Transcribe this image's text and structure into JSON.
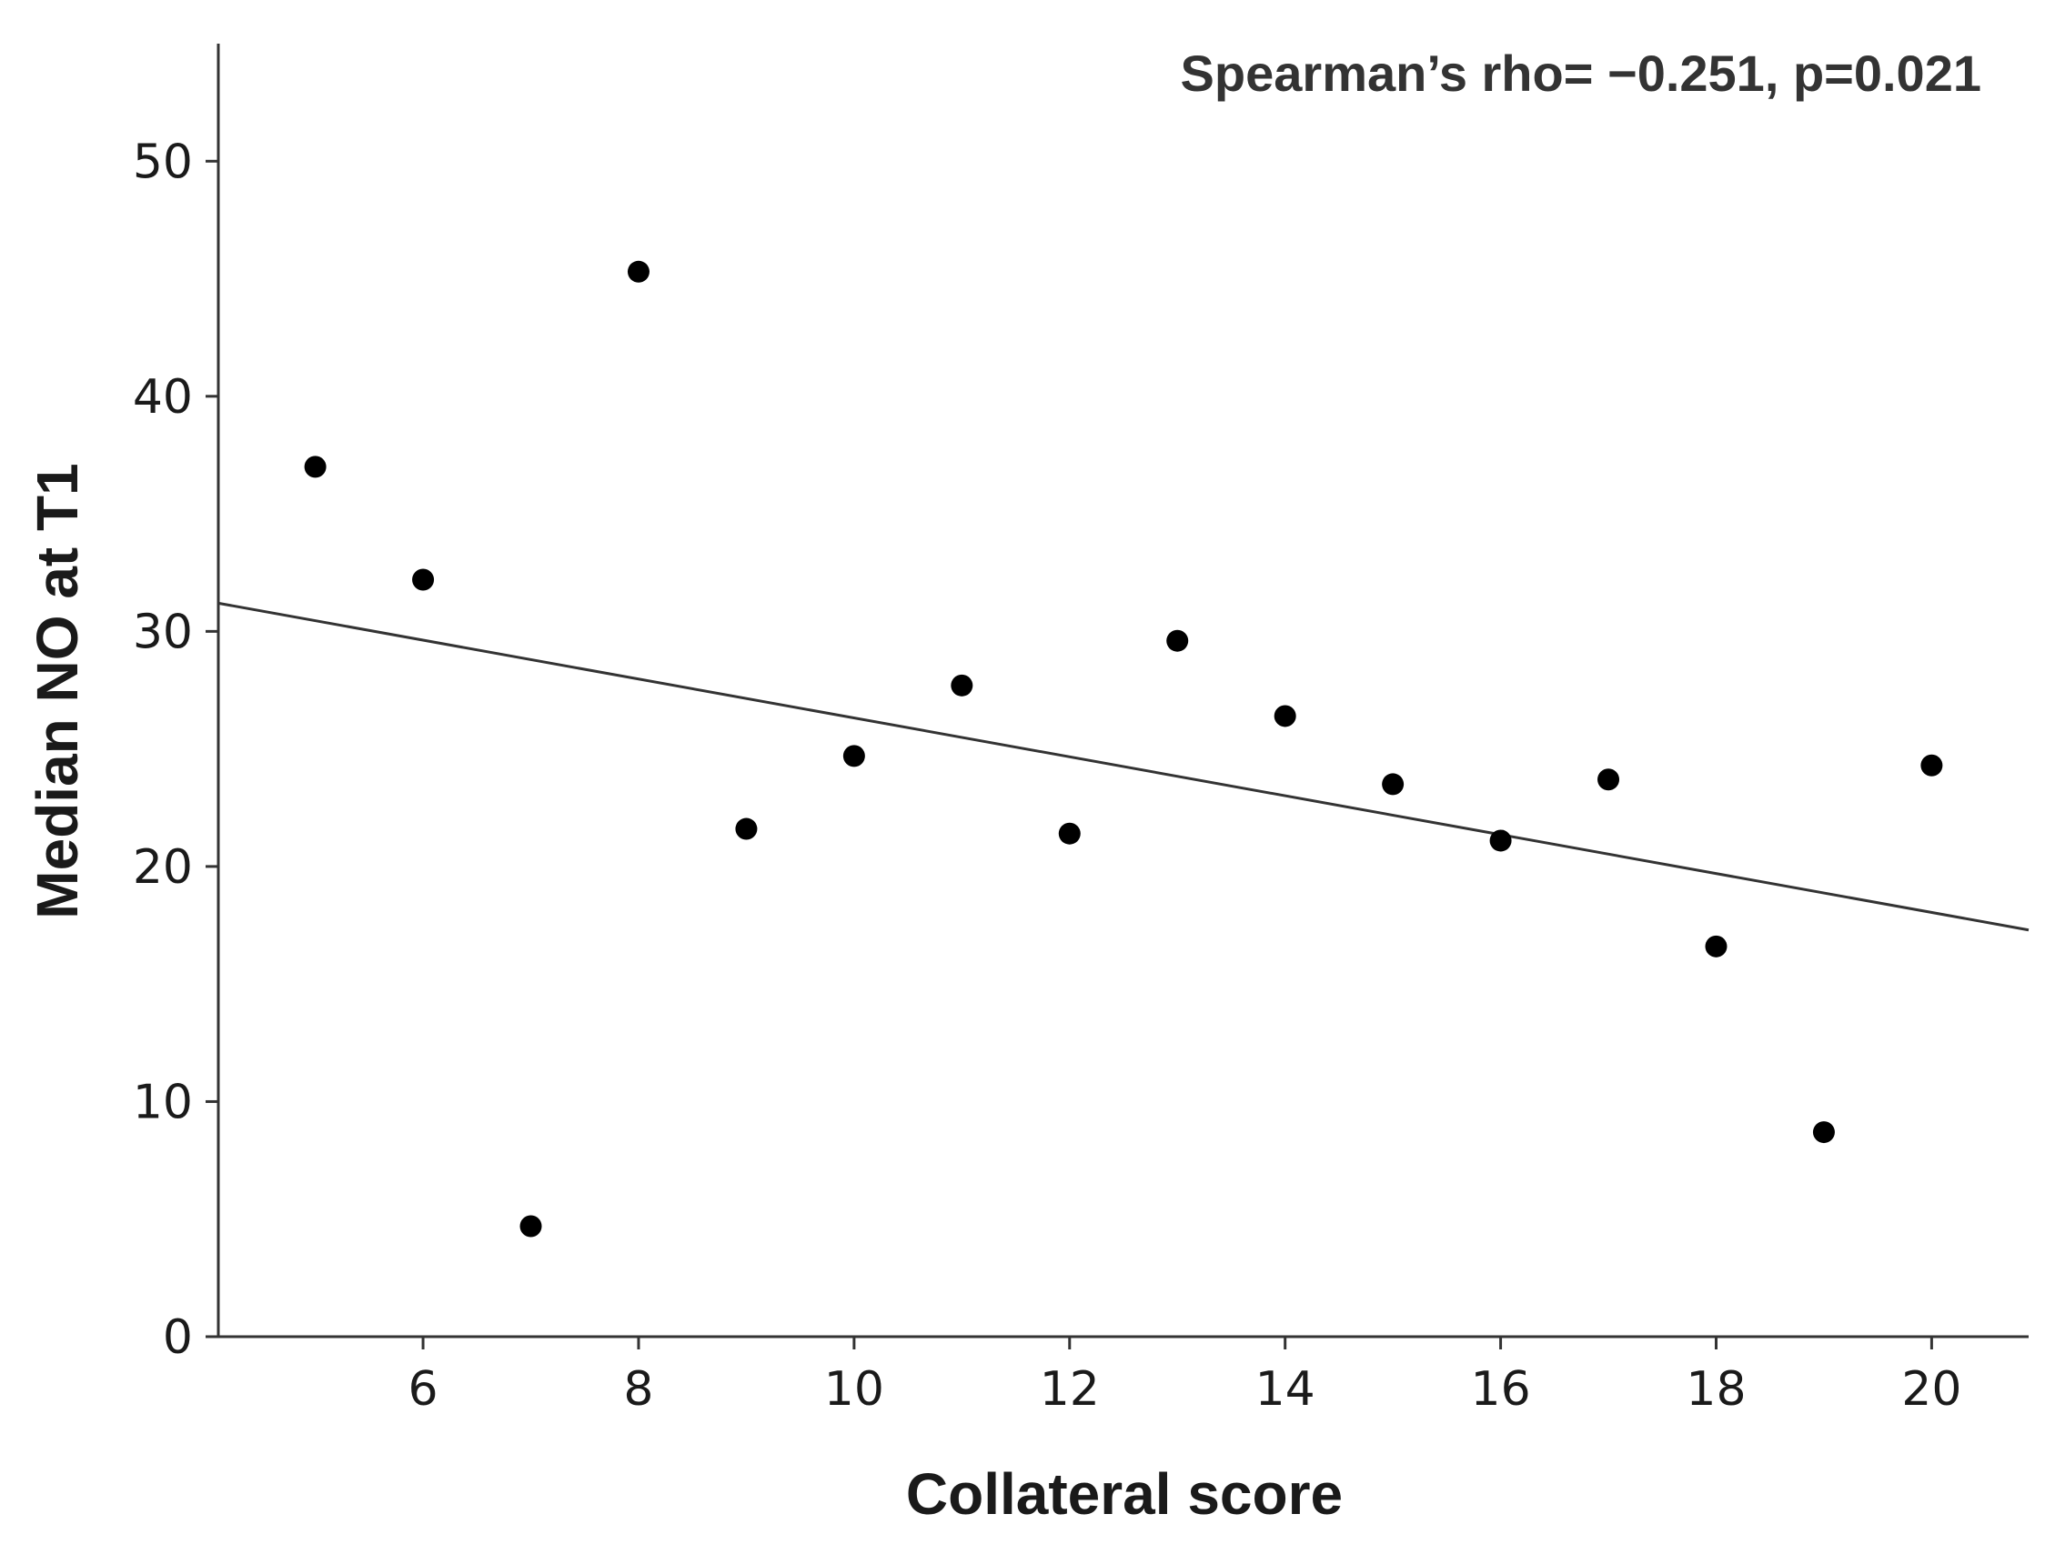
{
  "chart_data": {
    "type": "scatter",
    "title": "",
    "xlabel": "Collateral score",
    "ylabel": "Median NO at T1",
    "annotation": "Spearman’s rho= −0.251, p=0.021",
    "xlim": [
      4.1,
      20.9
    ],
    "ylim": [
      0,
      55
    ],
    "xticks": [
      6,
      8,
      10,
      12,
      14,
      16,
      18,
      20
    ],
    "yticks": [
      0,
      10,
      20,
      30,
      40,
      50
    ],
    "grid": false,
    "points": [
      {
        "x": 5,
        "y": 37.0
      },
      {
        "x": 6,
        "y": 32.2
      },
      {
        "x": 7,
        "y": 4.7
      },
      {
        "x": 8,
        "y": 45.3
      },
      {
        "x": 9,
        "y": 21.6
      },
      {
        "x": 10,
        "y": 24.7
      },
      {
        "x": 11,
        "y": 27.7
      },
      {
        "x": 12,
        "y": 21.4
      },
      {
        "x": 13,
        "y": 29.6
      },
      {
        "x": 14,
        "y": 26.4
      },
      {
        "x": 15,
        "y": 23.5
      },
      {
        "x": 16,
        "y": 21.1
      },
      {
        "x": 17,
        "y": 23.7
      },
      {
        "x": 18,
        "y": 16.6
      },
      {
        "x": 19,
        "y": 8.7
      },
      {
        "x": 20,
        "y": 24.3
      }
    ],
    "fit_line": {
      "x": [
        4.1,
        20.9
      ],
      "y": [
        31.2,
        17.3
      ]
    },
    "colors": {
      "points": "#000000",
      "line": "#333333",
      "axes": "#333333"
    }
  }
}
